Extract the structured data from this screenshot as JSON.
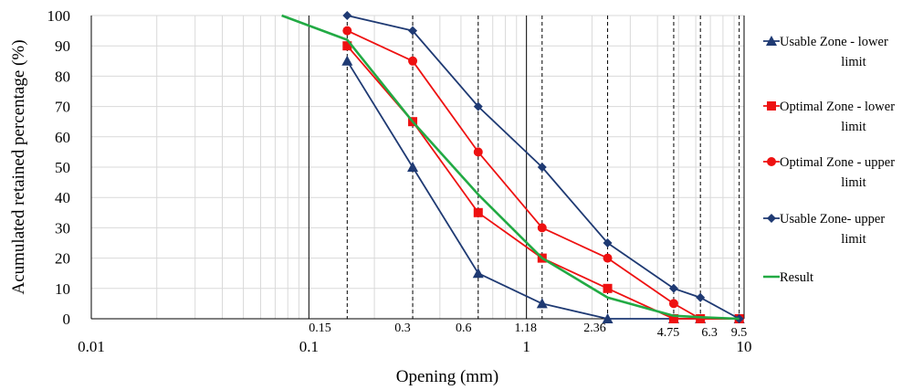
{
  "chart_data": {
    "type": "line",
    "title": "",
    "xlabel": "Opening (mm)",
    "ylabel": "Acumulated retained percentage (%)",
    "x_scale": "log",
    "xlim": [
      0.01,
      10
    ],
    "ylim": [
      0,
      100
    ],
    "y_ticks": [
      0,
      10,
      20,
      30,
      40,
      50,
      60,
      70,
      80,
      90,
      100
    ],
    "x_ticks": [
      {
        "value": 0.01,
        "label": "0.01"
      },
      {
        "value": 0.1,
        "label": "0.1"
      },
      {
        "value": 1,
        "label": "1"
      },
      {
        "value": 10,
        "label": "10"
      }
    ],
    "sieve_sizes": [
      {
        "value": 0.15,
        "label": "0.15"
      },
      {
        "value": 0.3,
        "label": "0.3"
      },
      {
        "value": 0.6,
        "label": "0.6"
      },
      {
        "value": 1.18,
        "label": "1.18"
      },
      {
        "value": 2.36,
        "label": "2.36"
      },
      {
        "value": 4.75,
        "label": "4.75"
      },
      {
        "value": 6.3,
        "label": "6.3"
      },
      {
        "value": 9.5,
        "label": "9.5"
      }
    ],
    "grid": true,
    "legend_position": "right",
    "series": [
      {
        "name": "Usable Zone - lower limit",
        "color": "#1f3a73",
        "marker": "triangle",
        "x": [
          0.15,
          0.3,
          0.6,
          1.18,
          2.36,
          4.75,
          6.3,
          9.5
        ],
        "y": [
          85,
          50,
          15,
          5,
          0,
          0,
          0,
          0
        ]
      },
      {
        "name": "Optimal Zone - lower limit",
        "color": "#ee1111",
        "marker": "square",
        "x": [
          0.15,
          0.3,
          0.6,
          1.18,
          2.36,
          4.75,
          6.3,
          9.5
        ],
        "y": [
          90,
          65,
          35,
          20,
          10,
          0,
          0,
          0
        ]
      },
      {
        "name": "Optimal Zone - upper limit",
        "color": "#ee1111",
        "marker": "circle",
        "x": [
          0.15,
          0.3,
          0.6,
          1.18,
          2.36,
          4.75,
          6.3,
          9.5
        ],
        "y": [
          95,
          85,
          55,
          30,
          20,
          5,
          0,
          0
        ]
      },
      {
        "name": "Usable Zone- upper limit",
        "color": "#1f3a73",
        "marker": "diamond",
        "x": [
          0.15,
          0.3,
          0.6,
          1.18,
          2.36,
          4.75,
          6.3,
          9.5
        ],
        "y": [
          100,
          95,
          70,
          50,
          25,
          10,
          7,
          0
        ]
      },
      {
        "name": "Result",
        "color": "#22aa44",
        "marker": "none",
        "x": [
          0.075,
          0.15,
          0.3,
          0.6,
          1.18,
          2.36,
          4.75,
          6.3,
          9.5
        ],
        "y": [
          100,
          92,
          65,
          41,
          20,
          7,
          1,
          0.5,
          0
        ]
      }
    ],
    "legend": [
      {
        "line1": "Usable Zone - lower",
        "line2": "limit"
      },
      {
        "line1": "Optimal Zone - lower",
        "line2": "limit"
      },
      {
        "line1": "Optimal Zone - upper",
        "line2": "limit"
      },
      {
        "line1": "Usable Zone- upper",
        "line2": "limit"
      },
      {
        "line1": "Result",
        "line2": ""
      }
    ]
  }
}
